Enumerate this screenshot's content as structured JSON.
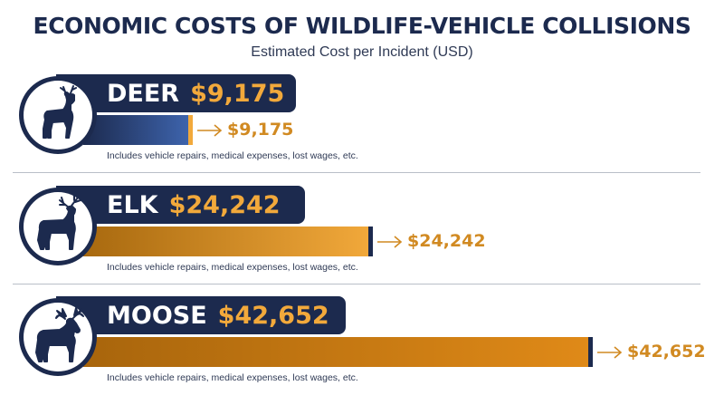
{
  "title": "ECONOMIC COSTS OF WILDLIFE-VEHICLE COLLISIONS",
  "subtitle": "Estimated Cost per Incident (USD)",
  "colors": {
    "navy": "#1c2a4e",
    "gold": "#f2a93b",
    "value_text": "#d18a22"
  },
  "chart_data": {
    "type": "bar",
    "orientation": "horizontal",
    "title": "ECONOMIC COSTS OF WILDLIFE-VEHICLE COLLISIONS",
    "subtitle": "Estimated Cost per Incident (USD)",
    "categories": [
      "DEER",
      "ELK",
      "MOOSE"
    ],
    "values": [
      9175,
      24242,
      42652
    ],
    "grid": false,
    "rows": [
      {
        "animal": "DEER",
        "value": 9175,
        "value_label": "$9,175",
        "note": "Includes vehicle repairs, medical expenses, lost wages, etc.",
        "icon": "deer-icon",
        "bar_colors": [
          "#1c2a4e",
          "#3f66b0"
        ]
      },
      {
        "animal": "ELK",
        "value": 24242,
        "value_label": "$24,242",
        "note": "Includes vehicle repairs, medical expenses, lost wages, etc.",
        "icon": "elk-icon",
        "bar_colors": [
          "#a8690f",
          "#f2a93b"
        ]
      },
      {
        "animal": "MOOSE",
        "value": 42652,
        "value_label": "$42,652",
        "note": "Includes vehicle repairs, medical expenses, lost wages, etc.",
        "icon": "moose-icon",
        "bar_colors": [
          "#a8650c",
          "#e08a18"
        ]
      }
    ]
  }
}
